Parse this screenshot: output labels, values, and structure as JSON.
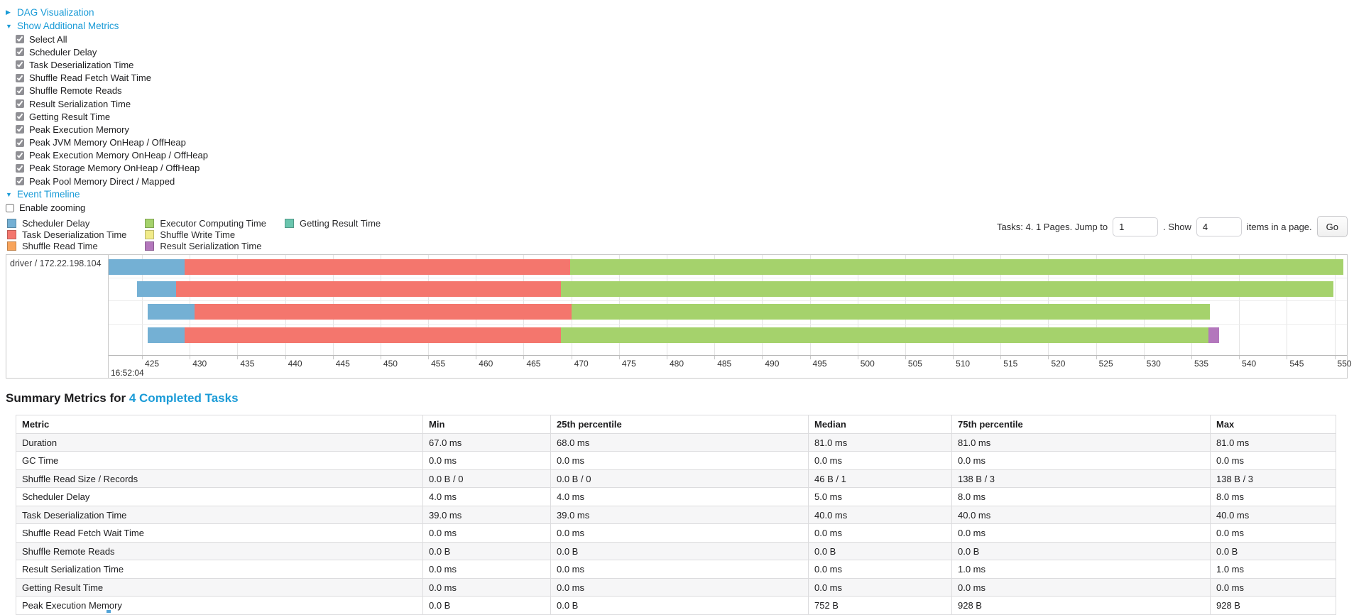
{
  "sections": {
    "dag": {
      "label": "DAG Visualization",
      "arrow": "▶"
    },
    "metrics": {
      "label": "Show Additional Metrics",
      "arrow": "▼",
      "items": [
        "Select All",
        "Scheduler Delay",
        "Task Deserialization Time",
        "Shuffle Read Fetch Wait Time",
        "Shuffle Remote Reads",
        "Result Serialization Time",
        "Getting Result Time",
        "Peak Execution Memory",
        "Peak JVM Memory OnHeap / OffHeap",
        "Peak Execution Memory OnHeap / OffHeap",
        "Peak Storage Memory OnHeap / OffHeap",
        "Peak Pool Memory Direct / Mapped"
      ]
    },
    "event_timeline": {
      "label": "Event Timeline",
      "arrow": "▼",
      "enable_zooming_label": "Enable zooming"
    }
  },
  "legend": {
    "items": [
      {
        "key": "scheduler_delay",
        "label": "Scheduler Delay"
      },
      {
        "key": "task_deserialization",
        "label": "Task Deserialization Time"
      },
      {
        "key": "shuffle_read",
        "label": "Shuffle Read Time"
      },
      {
        "key": "executor_computing",
        "label": "Executor Computing Time"
      },
      {
        "key": "shuffle_write",
        "label": "Shuffle Write Time"
      },
      {
        "key": "result_serialization",
        "label": "Result Serialization Time"
      },
      {
        "key": "getting_result",
        "label": "Getting Result Time"
      }
    ]
  },
  "pagination": {
    "tasks_info": "Tasks: 4. 1 Pages. Jump to",
    "jump_value": "1",
    "show_label": ". Show",
    "show_value": "4",
    "items_label": "items in a page.",
    "go_label": "Go"
  },
  "chart_data": {
    "type": "timeline",
    "row_label": "driver / 172.22.198.104",
    "colors": {
      "scheduler_delay": "#74b0d4",
      "task_deserialization": "#f4766d",
      "shuffle_read": "#f8a45b",
      "executor_computing": "#a5d26c",
      "shuffle_write": "#f1eb8a",
      "result_serialization": "#b377bc",
      "getting_result": "#6ac5ae"
    },
    "x_axis": {
      "min": 421.5,
      "max": 551.3,
      "ticks": [
        425,
        430,
        435,
        440,
        445,
        450,
        455,
        460,
        465,
        470,
        475,
        480,
        485,
        490,
        495,
        500,
        505,
        510,
        515,
        520,
        525,
        530,
        535,
        540,
        545,
        550
      ],
      "time_origin_label": "16:52:04",
      "units": "milliseconds within second"
    },
    "tasks": [
      {
        "segments": [
          {
            "kind": "scheduler_delay",
            "start": 421.5,
            "end": 429.5
          },
          {
            "kind": "task_deserialization",
            "start": 429.5,
            "end": 469.9
          },
          {
            "kind": "executor_computing",
            "start": 469.9,
            "end": 550.9
          }
        ]
      },
      {
        "segments": [
          {
            "kind": "scheduler_delay",
            "start": 424.5,
            "end": 428.6
          },
          {
            "kind": "task_deserialization",
            "start": 428.6,
            "end": 468.9
          },
          {
            "kind": "executor_computing",
            "start": 468.9,
            "end": 549.9
          }
        ]
      },
      {
        "segments": [
          {
            "kind": "scheduler_delay",
            "start": 425.6,
            "end": 430.5
          },
          {
            "kind": "task_deserialization",
            "start": 430.5,
            "end": 470.0
          },
          {
            "kind": "executor_computing",
            "start": 470.0,
            "end": 536.9
          }
        ]
      },
      {
        "segments": [
          {
            "kind": "scheduler_delay",
            "start": 425.6,
            "end": 429.5
          },
          {
            "kind": "task_deserialization",
            "start": 429.5,
            "end": 468.9
          },
          {
            "kind": "executor_computing",
            "start": 468.9,
            "end": 536.8
          },
          {
            "kind": "result_serialization",
            "start": 536.8,
            "end": 537.9
          }
        ]
      }
    ]
  },
  "summary": {
    "title_prefix": "Summary Metrics for ",
    "title_link": "4 Completed Tasks",
    "table": {
      "headers": [
        "Metric",
        "Min",
        "25th percentile",
        "Median",
        "75th percentile",
        "Max"
      ],
      "rows": [
        [
          "Duration",
          "67.0 ms",
          "68.0 ms",
          "81.0 ms",
          "81.0 ms",
          "81.0 ms"
        ],
        [
          "GC Time",
          "0.0 ms",
          "0.0 ms",
          "0.0 ms",
          "0.0 ms",
          "0.0 ms"
        ],
        [
          "Shuffle Read Size / Records",
          "0.0 B / 0",
          "0.0 B / 0",
          "46 B / 1",
          "138 B / 3",
          "138 B / 3"
        ],
        [
          "Scheduler Delay",
          "4.0 ms",
          "4.0 ms",
          "5.0 ms",
          "8.0 ms",
          "8.0 ms"
        ],
        [
          "Task Deserialization Time",
          "39.0 ms",
          "39.0 ms",
          "40.0 ms",
          "40.0 ms",
          "40.0 ms"
        ],
        [
          "Shuffle Read Fetch Wait Time",
          "0.0 ms",
          "0.0 ms",
          "0.0 ms",
          "0.0 ms",
          "0.0 ms"
        ],
        [
          "Shuffle Remote Reads",
          "0.0 B",
          "0.0 B",
          "0.0 B",
          "0.0 B",
          "0.0 B"
        ],
        [
          "Result Serialization Time",
          "0.0 ms",
          "0.0 ms",
          "0.0 ms",
          "1.0 ms",
          "1.0 ms"
        ],
        [
          "Getting Result Time",
          "0.0 ms",
          "0.0 ms",
          "0.0 ms",
          "0.0 ms",
          "0.0 ms"
        ],
        [
          "Peak Execution Memory",
          "0.0 B",
          "0.0 B",
          "752 B",
          "928 B",
          "928 B"
        ]
      ]
    }
  }
}
